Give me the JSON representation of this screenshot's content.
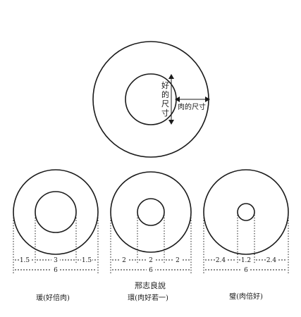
{
  "top_diagram": {
    "hole_label": "好的尺寸",
    "flesh_label": "肉的尺寸"
  },
  "attribution": "邢志良說",
  "diagrams": [
    {
      "caption": "瑗(好倍肉)",
      "dims": {
        "left": "1.5",
        "center": "3",
        "right": "1.5",
        "total": "6"
      }
    },
    {
      "caption": "環(肉好若一)",
      "dims": {
        "left": "2",
        "center": "2",
        "right": "2",
        "total": "6"
      }
    },
    {
      "caption": "璧(肉倍好)",
      "dims": {
        "left": "2.4",
        "center": "1.2",
        "right": "2.4",
        "total": "6"
      }
    }
  ]
}
